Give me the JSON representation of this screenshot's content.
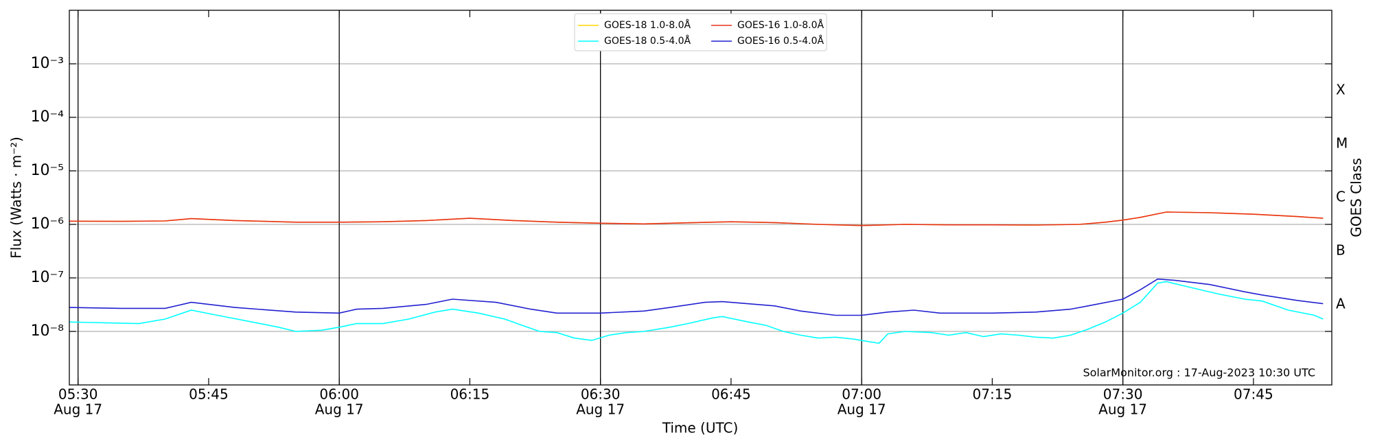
{
  "chart_data": {
    "type": "line",
    "ylabel": "Flux (Watts · m⁻²)",
    "xlabel": "Time (UTC)",
    "y2label": "GOES Class",
    "annotation": "SolarMonitor.org : 17-Aug-2023 10:30 UTC",
    "log_y": true,
    "grid": true,
    "legend": "upper center",
    "xlim": [
      "05:29",
      "07:54"
    ],
    "ylim": [
      1e-09,
      0.01
    ],
    "yticks": [
      {
        "value": 1e-08,
        "label": "10⁻⁸"
      },
      {
        "value": 1e-07,
        "label": "10⁻⁷"
      },
      {
        "value": 1e-06,
        "label": "10⁻⁶"
      },
      {
        "value": 1e-05,
        "label": "10⁻⁵"
      },
      {
        "value": 0.0001,
        "label": "10⁻⁴"
      },
      {
        "value": 0.001,
        "label": "10⁻³"
      }
    ],
    "y2lim": [
      1e-09,
      0.01
    ],
    "y2ticks": [
      {
        "value": 3.16e-08,
        "label": "A"
      },
      {
        "value": 3.16e-07,
        "label": "B"
      },
      {
        "value": 3.16e-06,
        "label": "C"
      },
      {
        "value": 3.16e-05,
        "label": "M"
      },
      {
        "value": 0.000316,
        "label": "X"
      }
    ],
    "xticks": [
      {
        "value": "05:30",
        "label": [
          "05:30",
          "Aug 17"
        ]
      },
      {
        "value": "05:45",
        "label": [
          "05:45"
        ]
      },
      {
        "value": "06:00",
        "label": [
          "06:00",
          "Aug 17"
        ]
      },
      {
        "value": "06:15",
        "label": [
          "06:15"
        ]
      },
      {
        "value": "06:30",
        "label": [
          "06:30",
          "Aug 17"
        ]
      },
      {
        "value": "06:45",
        "label": [
          "06:45"
        ]
      },
      {
        "value": "07:00",
        "label": [
          "07:00",
          "Aug 17"
        ]
      },
      {
        "value": "07:15",
        "label": [
          "07:15"
        ]
      },
      {
        "value": "07:30",
        "label": [
          "07:30",
          "Aug 17"
        ]
      },
      {
        "value": "07:45",
        "label": [
          "07:45"
        ]
      }
    ],
    "vlines": [
      "05:30",
      "06:00",
      "06:30",
      "07:00",
      "07:30"
    ],
    "series": [
      {
        "name": "GOES-18 1.0-8.0Å",
        "color": "#ffd700",
        "x": [
          "05:29",
          "05:35",
          "05:40",
          "05:43",
          "05:48",
          "05:55",
          "06:00",
          "06:05",
          "06:10",
          "06:15",
          "06:20",
          "06:25",
          "06:30",
          "06:35",
          "06:40",
          "06:45",
          "06:50",
          "06:55",
          "07:00",
          "07:05",
          "07:10",
          "07:15",
          "07:20",
          "07:25",
          "07:28",
          "07:30",
          "07:32",
          "07:35",
          "07:40",
          "07:45",
          "07:50",
          "07:53"
        ],
        "values": [
          1.15e-06,
          1.14e-06,
          1.16e-06,
          1.28e-06,
          1.18e-06,
          1.1e-06,
          1.1e-06,
          1.12e-06,
          1.18e-06,
          1.3e-06,
          1.18e-06,
          1.1e-06,
          1.05e-06,
          1.02e-06,
          1.07e-06,
          1.12e-06,
          1.08e-06,
          1e-06,
          9.5e-07,
          1e-06,
          9.8e-07,
          9.8e-07,
          9.7e-07,
          1e-06,
          1.1e-06,
          1.2e-06,
          1.35e-06,
          1.7e-06,
          1.65e-06,
          1.55e-06,
          1.4e-06,
          1.3e-06
        ]
      },
      {
        "name": "GOES-16 1.0-8.0Å",
        "color": "#e8301a",
        "x": [
          "05:29",
          "05:35",
          "05:40",
          "05:43",
          "05:48",
          "05:55",
          "06:00",
          "06:05",
          "06:10",
          "06:15",
          "06:20",
          "06:25",
          "06:30",
          "06:35",
          "06:40",
          "06:45",
          "06:50",
          "06:55",
          "07:00",
          "07:05",
          "07:10",
          "07:15",
          "07:20",
          "07:25",
          "07:28",
          "07:30",
          "07:32",
          "07:35",
          "07:40",
          "07:45",
          "07:50",
          "07:53"
        ],
        "values": [
          1.15e-06,
          1.14e-06,
          1.16e-06,
          1.28e-06,
          1.18e-06,
          1.1e-06,
          1.1e-06,
          1.12e-06,
          1.18e-06,
          1.3e-06,
          1.18e-06,
          1.1e-06,
          1.05e-06,
          1.02e-06,
          1.07e-06,
          1.12e-06,
          1.08e-06,
          1e-06,
          9.5e-07,
          1e-06,
          9.8e-07,
          9.8e-07,
          9.7e-07,
          1e-06,
          1.1e-06,
          1.2e-06,
          1.35e-06,
          1.7e-06,
          1.65e-06,
          1.55e-06,
          1.4e-06,
          1.3e-06
        ]
      },
      {
        "name": "GOES-18 0.5-4.0Å",
        "color": "#00ffff",
        "x": [
          "05:29",
          "05:33",
          "05:37",
          "05:40",
          "05:43",
          "05:46",
          "05:50",
          "05:53",
          "05:55",
          "05:58",
          "06:00",
          "06:02",
          "06:05",
          "06:08",
          "06:11",
          "06:13",
          "06:16",
          "06:19",
          "06:21",
          "06:23",
          "06:25",
          "06:27",
          "06:29",
          "06:31",
          "06:33",
          "06:35",
          "06:38",
          "06:40",
          "06:43",
          "06:44",
          "06:47",
          "06:49",
          "06:51",
          "06:53",
          "06:55",
          "06:57",
          "06:59",
          "07:02",
          "07:03",
          "07:05",
          "07:08",
          "07:10",
          "07:12",
          "07:14",
          "07:16",
          "07:18",
          "07:20",
          "07:22",
          "07:24",
          "07:26",
          "07:28",
          "07:30",
          "07:32",
          "07:34",
          "07:35",
          "07:38",
          "07:41",
          "07:44",
          "07:46",
          "07:49",
          "07:52",
          "07:53"
        ],
        "values": [
          1.5e-08,
          1.45e-08,
          1.4e-08,
          1.7e-08,
          2.5e-08,
          2e-08,
          1.5e-08,
          1.2e-08,
          1e-08,
          1.05e-08,
          1.2e-08,
          1.4e-08,
          1.4e-08,
          1.7e-08,
          2.3e-08,
          2.6e-08,
          2.2e-08,
          1.7e-08,
          1.3e-08,
          1e-08,
          9.5e-09,
          7.5e-09,
          6.8e-09,
          8.5e-09,
          9.5e-09,
          1e-08,
          1.2e-08,
          1.4e-08,
          1.8e-08,
          1.9e-08,
          1.5e-08,
          1.3e-08,
          1e-08,
          8.5e-09,
          7.5e-09,
          7.8e-09,
          7.2e-09,
          6e-09,
          9e-09,
          1e-08,
          9.5e-09,
          8.5e-09,
          9.5e-09,
          8e-09,
          9e-09,
          8.5e-09,
          7.8e-09,
          7.5e-09,
          8.5e-09,
          1.1e-08,
          1.5e-08,
          2.2e-08,
          3.5e-08,
          8e-08,
          8.5e-08,
          6.5e-08,
          5e-08,
          4e-08,
          3.7e-08,
          2.5e-08,
          2e-08,
          1.7e-08
        ]
      },
      {
        "name": "GOES-16 0.5-4.0Å",
        "color": "#2020d0",
        "x": [
          "05:29",
          "05:35",
          "05:40",
          "05:43",
          "05:48",
          "05:55",
          "06:00",
          "06:02",
          "06:05",
          "06:10",
          "06:13",
          "06:18",
          "06:22",
          "06:25",
          "06:30",
          "06:35",
          "06:38",
          "06:42",
          "06:44",
          "06:50",
          "06:53",
          "06:57",
          "07:00",
          "07:03",
          "07:06",
          "07:09",
          "07:15",
          "07:20",
          "07:24",
          "07:26",
          "07:30",
          "07:32",
          "07:34",
          "07:36",
          "07:40",
          "07:44",
          "07:46",
          "07:50",
          "07:53"
        ],
        "values": [
          2.8e-08,
          2.7e-08,
          2.7e-08,
          3.5e-08,
          2.8e-08,
          2.3e-08,
          2.2e-08,
          2.6e-08,
          2.7e-08,
          3.2e-08,
          4e-08,
          3.5e-08,
          2.6e-08,
          2.2e-08,
          2.2e-08,
          2.4e-08,
          2.8e-08,
          3.5e-08,
          3.6e-08,
          3e-08,
          2.4e-08,
          2e-08,
          2e-08,
          2.3e-08,
          2.5e-08,
          2.2e-08,
          2.2e-08,
          2.3e-08,
          2.6e-08,
          3e-08,
          4e-08,
          6e-08,
          9.5e-08,
          9e-08,
          7.5e-08,
          5.5e-08,
          4.8e-08,
          3.8e-08,
          3.3e-08
        ]
      }
    ]
  }
}
